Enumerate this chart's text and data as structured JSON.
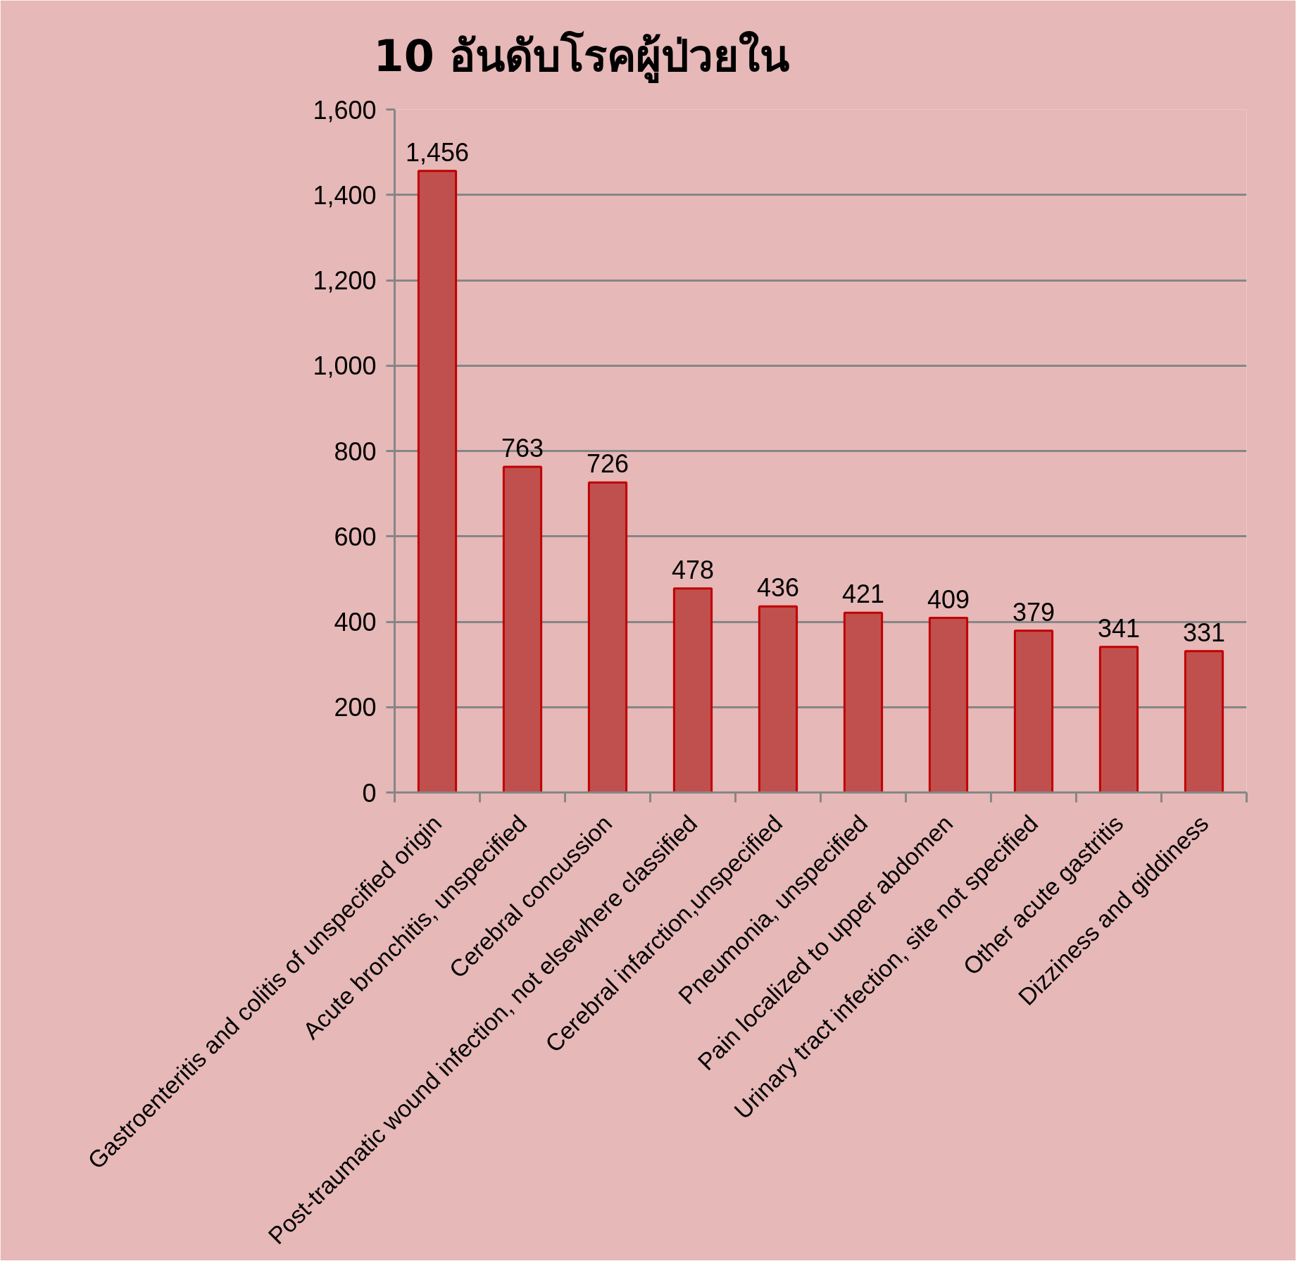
{
  "chart_data": {
    "type": "bar",
    "title": "10 อันดับโรคผู้ป่วยใน",
    "categories": [
      "Gastroenteritis and colitis of unspecified origin",
      "Acute bronchitis, unspecified",
      "Cerebral concussion",
      "Post-traumatic wound infection, not elsewhere classified",
      "Cerebral infarction,unspecified",
      "Pneumonia, unspecified",
      "Pain localized to upper abdomen",
      "Urinary tract infection, site not specified",
      "Other acute gastritis",
      "Dizziness and giddiness"
    ],
    "values": [
      1456,
      763,
      726,
      478,
      436,
      421,
      409,
      379,
      341,
      331
    ],
    "value_labels": [
      "1,456",
      "763",
      "726",
      "478",
      "436",
      "421",
      "409",
      "379",
      "341",
      "331"
    ],
    "color": "#c0504d",
    "ylim": [
      0,
      1600
    ],
    "yticks": [
      0,
      200,
      400,
      600,
      800,
      {
        "value": 1000,
        "label": "1,000"
      },
      {
        "value": 1200,
        "label": "1,200"
      },
      {
        "value": 1400,
        "label": "1,400"
      },
      {
        "value": 1600,
        "label": "1,600"
      }
    ],
    "grid": "y"
  }
}
